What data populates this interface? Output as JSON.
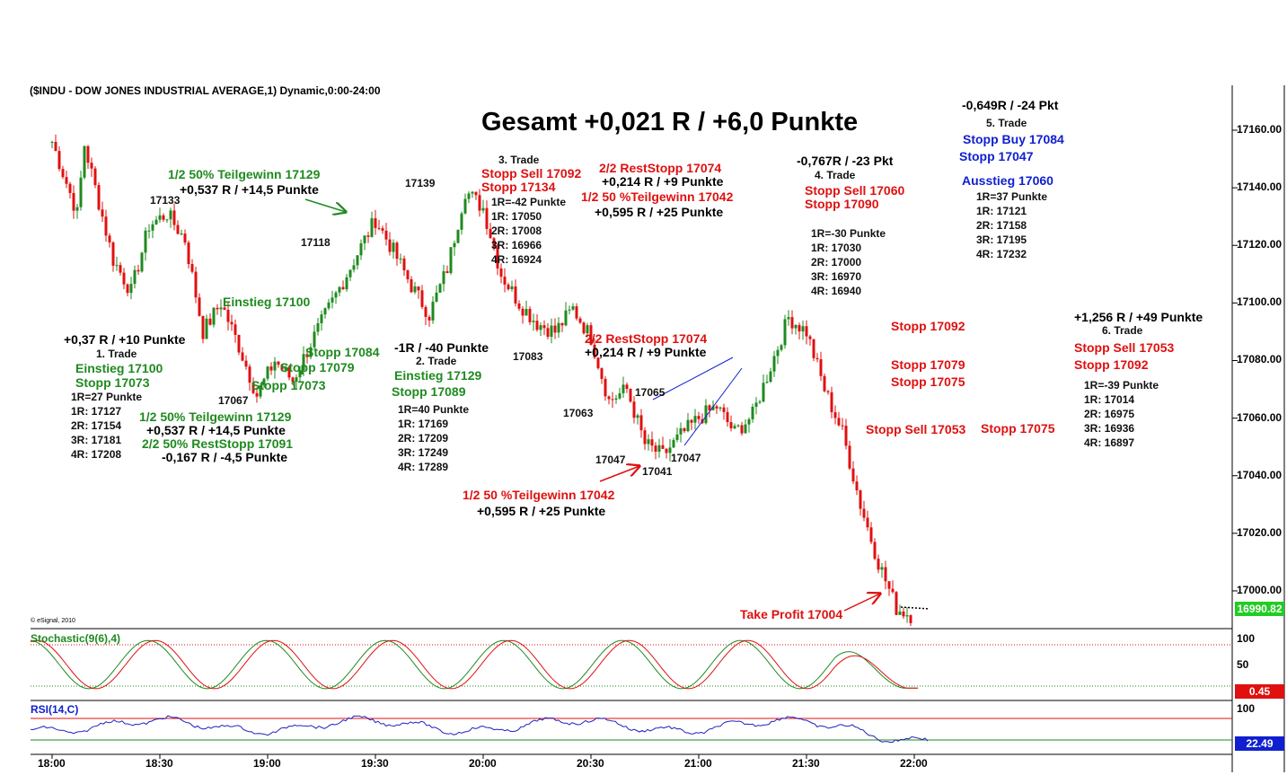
{
  "header": "($INDU - DOW JONES INDUSTRIAL AVERAGE,1) Dynamic,0:00-24:00",
  "big_title": "Gesamt +0,021 R / +6,0 Punkte",
  "copyright": "© eSignal, 2010",
  "colors": {
    "up": "#1f8a1f",
    "down": "#e01010",
    "blue": "#1020d0",
    "rsi": "#2020c0",
    "last_price_bg": "#22cc22",
    "stoch_last_bg": "#e01010",
    "rsi_last_bg": "#1020d0"
  },
  "chart_data": [
    {
      "type": "candlestick",
      "y_axis_ticks": [
        "17160.00",
        "17140.00",
        "17120.00",
        "17100.00",
        "17080.00",
        "17060.00",
        "17040.00",
        "17020.00",
        "17000.00"
      ],
      "y_range": [
        16988,
        17182
      ],
      "x_axis_ticks": [
        "18:00",
        "18:30",
        "19:00",
        "19:30",
        "20:00",
        "20:30",
        "21:00",
        "21:30",
        "22:00"
      ],
      "x_range": [
        "17:54",
        "22:30"
      ],
      "last_price": "16990.82",
      "path": [
        [
          "18:00",
          17156
        ],
        [
          "18:07",
          17131
        ],
        [
          "18:09",
          17155
        ],
        [
          "18:17",
          17115
        ],
        [
          "18:22",
          17104
        ],
        [
          "18:27",
          17127
        ],
        [
          "18:32",
          17131
        ],
        [
          "18:37",
          17122
        ],
        [
          "18:42",
          17090
        ],
        [
          "18:47",
          17100
        ],
        [
          "18:52",
          17085
        ],
        [
          "18:57",
          17068
        ],
        [
          "19:02",
          17080
        ],
        [
          "19:07",
          17073
        ],
        [
          "19:12",
          17086
        ],
        [
          "19:17",
          17098
        ],
        [
          "19:22",
          17110
        ],
        [
          "19:27",
          17122
        ],
        [
          "19:30",
          17129
        ],
        [
          "19:35",
          17118
        ],
        [
          "19:40",
          17106
        ],
        [
          "19:45",
          17096
        ],
        [
          "19:50",
          17112
        ],
        [
          "19:55",
          17139
        ],
        [
          "20:00",
          17133
        ],
        [
          "20:05",
          17110
        ],
        [
          "20:10",
          17100
        ],
        [
          "20:15",
          17093
        ],
        [
          "20:20",
          17090
        ],
        [
          "20:25",
          17098
        ],
        [
          "20:30",
          17088
        ],
        [
          "20:35",
          17066
        ],
        [
          "20:40",
          17070
        ],
        [
          "20:45",
          17051
        ],
        [
          "20:50",
          17047
        ],
        [
          "20:55",
          17054
        ],
        [
          "21:00",
          17060
        ],
        [
          "21:05",
          17064
        ],
        [
          "21:10",
          17055
        ],
        [
          "21:15",
          17061
        ],
        [
          "21:20",
          17078
        ],
        [
          "21:25",
          17095
        ],
        [
          "21:30",
          17090
        ],
        [
          "21:35",
          17070
        ],
        [
          "21:40",
          17055
        ],
        [
          "21:45",
          17030
        ],
        [
          "21:50",
          17010
        ],
        [
          "21:55",
          16994
        ],
        [
          "22:00",
          16991
        ]
      ]
    },
    {
      "type": "line",
      "name": "Stochastic(9(6),4)",
      "y_axis_ticks": [
        "100",
        "50"
      ],
      "y_range": [
        0,
        100
      ],
      "levels": [
        80,
        20
      ],
      "last_value": "0.45"
    },
    {
      "type": "line",
      "name": "RSI(14,C)",
      "y_axis_ticks": [
        "100"
      ],
      "y_range": [
        0,
        100
      ],
      "levels": [
        70,
        30
      ],
      "last_value": "22.49"
    }
  ],
  "annotations": [
    {
      "text": "1/2 50% Teilgewinn 17129",
      "color": "green",
      "left": 0
    },
    {
      "text": "+0,537 R / +14,5 Punkte",
      "color": "blk"
    },
    {
      "text": "17133",
      "color": "small"
    },
    {
      "text": "17118",
      "color": "small"
    },
    {
      "text": "17139",
      "color": "small"
    },
    {
      "text": "Einstieg 17100",
      "color": "green"
    },
    {
      "text": "+0,37 R / +10 Punkte",
      "color": "blk"
    },
    {
      "text": "1. Trade",
      "color": "small"
    },
    {
      "text": "Einstieg 17100",
      "color": "green"
    },
    {
      "text": "Stopp 17073",
      "color": "green"
    },
    {
      "text": "1R=27 Punkte",
      "color": "small"
    },
    {
      "text": "1R: 17127",
      "color": "small"
    },
    {
      "text": "2R: 17154",
      "color": "small"
    },
    {
      "text": "3R: 17181",
      "color": "small"
    },
    {
      "text": "4R: 17208",
      "color": "small"
    },
    {
      "text": "17067",
      "color": "small"
    },
    {
      "text": "Stopp 17084",
      "color": "green"
    },
    {
      "text": "Stopp 17079",
      "color": "green"
    },
    {
      "text": "Stopp 17073",
      "color": "green"
    },
    {
      "text": "1/2 50% Teilgewinn 17129",
      "color": "green"
    },
    {
      "text": "+0,537 R / +14,5 Punkte",
      "color": "blk"
    },
    {
      "text": "2/2 50% RestStopp 17091",
      "color": "green"
    },
    {
      "text": "-0,167 R / -4,5 Punkte",
      "color": "blk"
    },
    {
      "text": "-1R  / -40 Punkte",
      "color": "blk"
    },
    {
      "text": "2. Trade",
      "color": "small"
    },
    {
      "text": "Einstieg 17129",
      "color": "green"
    },
    {
      "text": "Stopp 17089",
      "color": "green"
    },
    {
      "text": "1R=40 Punkte",
      "color": "small"
    },
    {
      "text": "1R: 17169",
      "color": "small"
    },
    {
      "text": "2R: 17209",
      "color": "small"
    },
    {
      "text": "3R: 17249",
      "color": "small"
    },
    {
      "text": "4R: 17289",
      "color": "small"
    },
    {
      "text": "3. Trade",
      "color": "small"
    },
    {
      "text": "Stopp Sell 17092",
      "color": "red"
    },
    {
      "text": "Stopp 17134",
      "color": "red"
    },
    {
      "text": "1R=-42 Punkte",
      "color": "small"
    },
    {
      "text": "1R: 17050",
      "color": "small"
    },
    {
      "text": "2R: 17008",
      "color": "small"
    },
    {
      "text": "3R: 16966",
      "color": "small"
    },
    {
      "text": "4R: 16924",
      "color": "small"
    },
    {
      "text": "17083",
      "color": "small"
    },
    {
      "text": "2/2 RestStopp 17074",
      "color": "red"
    },
    {
      "text": "+0,214 R / +9 Punkte",
      "color": "blk"
    },
    {
      "text": "1/2 50 %Teilgewinn 17042",
      "color": "red"
    },
    {
      "text": "+0,595 R / +25 Punkte",
      "color": "blk"
    },
    {
      "text": "2/2 RestStopp 17074",
      "color": "red"
    },
    {
      "text": "+0,214 R / +9 Punkte",
      "color": "blk"
    },
    {
      "text": "17065",
      "color": "small"
    },
    {
      "text": "17063",
      "color": "small"
    },
    {
      "text": "17047",
      "color": "small"
    },
    {
      "text": "17041",
      "color": "small"
    },
    {
      "text": "17047",
      "color": "small"
    },
    {
      "text": "1/2 50 %Teilgewinn 17042",
      "color": "red"
    },
    {
      "text": "+0,595 R / +25 Punkte",
      "color": "blk"
    },
    {
      "text": "-0,767R / -23 Pkt",
      "color": "blk"
    },
    {
      "text": "4. Trade",
      "color": "small"
    },
    {
      "text": "Stopp Sell 17060",
      "color": "red"
    },
    {
      "text": "Stopp 17090",
      "color": "red"
    },
    {
      "text": "1R=-30 Punkte",
      "color": "small"
    },
    {
      "text": "1R: 17030",
      "color": "small"
    },
    {
      "text": "2R: 17000",
      "color": "small"
    },
    {
      "text": "3R: 16970",
      "color": "small"
    },
    {
      "text": "4R: 16940",
      "color": "small"
    },
    {
      "text": "Stopp 17092",
      "color": "red"
    },
    {
      "text": "Stopp 17079",
      "color": "red"
    },
    {
      "text": "Stopp 17075",
      "color": "red"
    },
    {
      "text": "Stopp Sell 17053",
      "color": "red"
    },
    {
      "text": "Stopp 17075",
      "color": "red"
    },
    {
      "text": "Take Profit 17004",
      "color": "red"
    },
    {
      "text": "-0,649R / -24 Pkt",
      "color": "blk"
    },
    {
      "text": "5. Trade",
      "color": "small"
    },
    {
      "text": "Stopp Buy 17084",
      "color": "blue"
    },
    {
      "text": "Stopp 17047",
      "color": "blue"
    },
    {
      "text": "Ausstieg 17060",
      "color": "blue"
    },
    {
      "text": "1R=37 Punkte",
      "color": "small"
    },
    {
      "text": "1R: 17121",
      "color": "small"
    },
    {
      "text": "2R: 17158",
      "color": "small"
    },
    {
      "text": "3R: 17195",
      "color": "small"
    },
    {
      "text": "4R: 17232",
      "color": "small"
    },
    {
      "text": "+1,256 R / +49 Punkte",
      "color": "blk"
    },
    {
      "text": "6. Trade",
      "color": "small"
    },
    {
      "text": "Stopp Sell 17053",
      "color": "red"
    },
    {
      "text": "Stopp 17092",
      "color": "red"
    },
    {
      "text": "1R=-39 Punkte",
      "color": "small"
    },
    {
      "text": "1R: 17014",
      "color": "small"
    },
    {
      "text": "2R: 16975",
      "color": "small"
    },
    {
      "text": "3R: 16936",
      "color": "small"
    },
    {
      "text": "4R: 16897",
      "color": "small"
    }
  ]
}
